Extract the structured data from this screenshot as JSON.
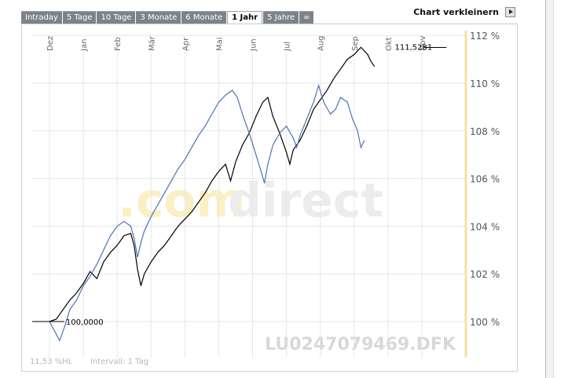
{
  "tabs": [
    "Intraday",
    "5 Tage",
    "10 Tage",
    "3 Monate",
    "6 Monate",
    "1 Jahr",
    "5 Jahre",
    "∞"
  ],
  "active_tab": "1 Jahr",
  "header": {
    "shrink_label": "Chart verkleinern",
    "shrink_icon": "play-arrow-icon"
  },
  "watermark": {
    "brand_prefix": ".com",
    "brand_suffix": "direct",
    "symbol": "LU0247079469.DFK"
  },
  "footer": {
    "range_text": "11,53 %HL",
    "interval_text": "Intervall: 1 Tag"
  },
  "colors": {
    "main_series": "#000000",
    "compare_series": "#4a74b0",
    "marker_line": "#f5e29a",
    "grid": "#e6e6e6"
  },
  "chart_data": {
    "type": "line",
    "title": "",
    "xlabel": "",
    "ylabel": "",
    "x_ticks": [
      "Dez",
      "Jan",
      "Feb",
      "Mär",
      "Apr",
      "Mai",
      "Jun",
      "Jul",
      "Aug",
      "Sep",
      "Okt",
      "Nov"
    ],
    "y_ticks": [
      100,
      102,
      104,
      106,
      108,
      110,
      112
    ],
    "y_tick_labels": [
      "100 %",
      "102 %",
      "104 %",
      "106 %",
      "108 %",
      "110 %",
      "112 %"
    ],
    "ylim": [
      98.5,
      112.2
    ],
    "x_range_months": [
      0,
      12.3
    ],
    "grid": true,
    "annotations": [
      {
        "text": "100,0000",
        "x": 0.3,
        "y": 100.0
      },
      {
        "text": "111,5281",
        "x": 11.4,
        "y": 111.53
      }
    ],
    "series": [
      {
        "values": [
          [
            0.0,
            100.0
          ],
          [
            0.2,
            100.1
          ],
          [
            0.4,
            100.5
          ],
          [
            0.6,
            100.9
          ],
          [
            0.8,
            101.2
          ],
          [
            1.0,
            101.6
          ],
          [
            1.2,
            102.1
          ],
          [
            1.4,
            101.8
          ],
          [
            1.6,
            102.5
          ],
          [
            1.8,
            102.9
          ],
          [
            2.0,
            103.2
          ],
          [
            2.2,
            103.6
          ],
          [
            2.4,
            103.7
          ],
          [
            2.5,
            103.2
          ],
          [
            2.6,
            102.2
          ],
          [
            2.7,
            101.5
          ],
          [
            2.8,
            102.0
          ],
          [
            3.0,
            102.5
          ],
          [
            3.2,
            102.9
          ],
          [
            3.4,
            103.2
          ],
          [
            3.6,
            103.6
          ],
          [
            3.8,
            104.0
          ],
          [
            4.0,
            104.3
          ],
          [
            4.2,
            104.6
          ],
          [
            4.4,
            105.0
          ],
          [
            4.6,
            105.4
          ],
          [
            4.8,
            105.9
          ],
          [
            5.0,
            106.3
          ],
          [
            5.2,
            106.6
          ],
          [
            5.35,
            105.9
          ],
          [
            5.5,
            106.7
          ],
          [
            5.7,
            107.4
          ],
          [
            5.9,
            107.9
          ],
          [
            6.1,
            108.6
          ],
          [
            6.3,
            109.2
          ],
          [
            6.45,
            109.4
          ],
          [
            6.6,
            108.6
          ],
          [
            6.8,
            107.9
          ],
          [
            7.0,
            107.1
          ],
          [
            7.1,
            106.6
          ],
          [
            7.2,
            107.2
          ],
          [
            7.4,
            107.6
          ],
          [
            7.6,
            108.2
          ],
          [
            7.8,
            108.9
          ],
          [
            8.0,
            109.3
          ],
          [
            8.2,
            109.7
          ],
          [
            8.4,
            110.2
          ],
          [
            8.6,
            110.6
          ],
          [
            8.8,
            111.0
          ],
          [
            9.0,
            111.2
          ],
          [
            9.2,
            111.5
          ],
          [
            9.4,
            111.2
          ],
          [
            9.5,
            110.9
          ],
          [
            9.6,
            110.7
          ]
        ]
      },
      {
        "values": [
          [
            0.0,
            100.0
          ],
          [
            0.15,
            99.6
          ],
          [
            0.3,
            99.2
          ],
          [
            0.45,
            99.8
          ],
          [
            0.6,
            100.5
          ],
          [
            0.8,
            100.9
          ],
          [
            1.0,
            101.5
          ],
          [
            1.2,
            101.9
          ],
          [
            1.4,
            102.4
          ],
          [
            1.6,
            103.0
          ],
          [
            1.8,
            103.6
          ],
          [
            2.0,
            104.0
          ],
          [
            2.2,
            104.2
          ],
          [
            2.4,
            104.0
          ],
          [
            2.5,
            103.5
          ],
          [
            2.6,
            102.7
          ],
          [
            2.7,
            103.3
          ],
          [
            2.8,
            103.8
          ],
          [
            3.0,
            104.4
          ],
          [
            3.2,
            104.9
          ],
          [
            3.4,
            105.4
          ],
          [
            3.6,
            105.9
          ],
          [
            3.8,
            106.4
          ],
          [
            4.0,
            106.8
          ],
          [
            4.2,
            107.3
          ],
          [
            4.4,
            107.8
          ],
          [
            4.6,
            108.2
          ],
          [
            4.8,
            108.7
          ],
          [
            5.0,
            109.2
          ],
          [
            5.2,
            109.5
          ],
          [
            5.4,
            109.7
          ],
          [
            5.55,
            109.4
          ],
          [
            5.7,
            108.7
          ],
          [
            5.9,
            107.9
          ],
          [
            6.1,
            107.0
          ],
          [
            6.25,
            106.3
          ],
          [
            6.35,
            105.8
          ],
          [
            6.45,
            106.6
          ],
          [
            6.6,
            107.4
          ],
          [
            6.8,
            107.9
          ],
          [
            7.0,
            108.2
          ],
          [
            7.2,
            107.7
          ],
          [
            7.3,
            107.3
          ],
          [
            7.4,
            107.8
          ],
          [
            7.6,
            108.5
          ],
          [
            7.8,
            109.2
          ],
          [
            7.95,
            109.9
          ],
          [
            8.1,
            109.2
          ],
          [
            8.3,
            108.7
          ],
          [
            8.45,
            108.9
          ],
          [
            8.6,
            109.4
          ],
          [
            8.8,
            109.2
          ],
          [
            8.95,
            108.5
          ],
          [
            9.1,
            108.0
          ],
          [
            9.2,
            107.3
          ],
          [
            9.3,
            107.6
          ]
        ]
      }
    ]
  }
}
